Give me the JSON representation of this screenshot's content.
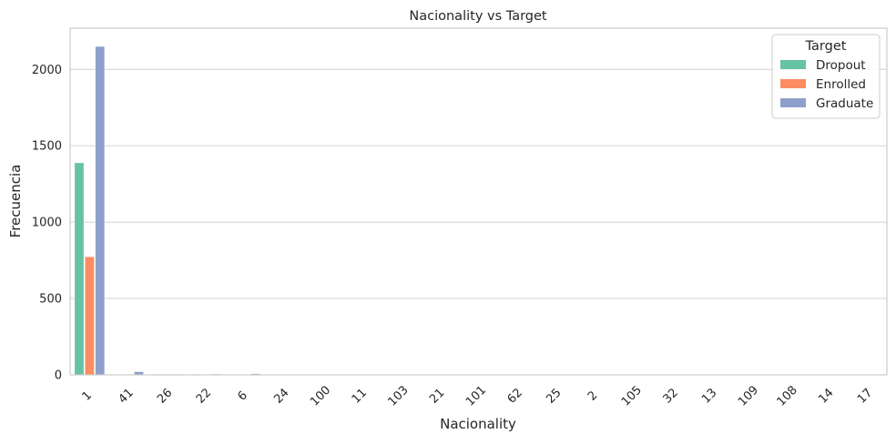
{
  "chart_data": {
    "type": "bar",
    "title": "Nacionality vs Target",
    "xlabel": "Nacionality",
    "ylabel": "Frecuencia",
    "ylim": [
      0,
      2270
    ],
    "yticks": [
      0,
      500,
      1000,
      1500,
      2000
    ],
    "grid": true,
    "legend_position": "top-right",
    "legend_title": "Target",
    "categories": [
      "1",
      "41",
      "26",
      "22",
      "6",
      "24",
      "100",
      "11",
      "103",
      "21",
      "101",
      "62",
      "25",
      "2",
      "105",
      "32",
      "13",
      "109",
      "108",
      "14",
      "17"
    ],
    "series": [
      {
        "name": "Dropout",
        "color": "#66c2a5",
        "values": [
          1389,
          0,
          5,
          5,
          2,
          1,
          3,
          1,
          1,
          2,
          1,
          1,
          1,
          1,
          1,
          0,
          0,
          0,
          0,
          0,
          0
        ]
      },
      {
        "name": "Enrolled",
        "color": "#fc8d62",
        "values": [
          774,
          1,
          5,
          2,
          3,
          1,
          1,
          1,
          1,
          1,
          0,
          0,
          1,
          0,
          1,
          1,
          0,
          0,
          0,
          0,
          1
        ]
      },
      {
        "name": "Graduate",
        "color": "#8da0cb",
        "values": [
          2151,
          21,
          5,
          6,
          8,
          3,
          1,
          1,
          1,
          0,
          1,
          1,
          0,
          1,
          0,
          0,
          1,
          1,
          1,
          1,
          0
        ]
      }
    ]
  }
}
